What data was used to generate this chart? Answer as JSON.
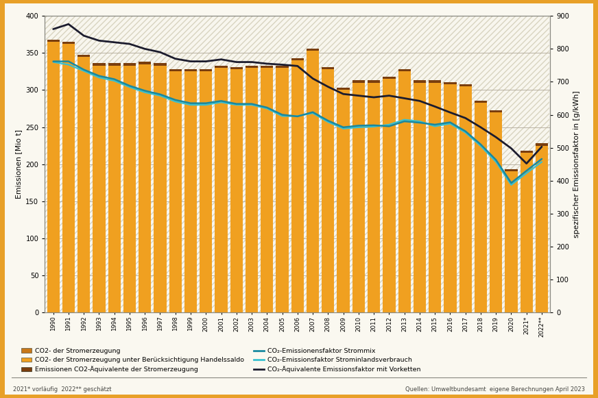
{
  "years": [
    "1990",
    "1991",
    "1992",
    "1993",
    "1994",
    "1995",
    "1996",
    "1997",
    "1998",
    "1999",
    "2000",
    "2001",
    "2002",
    "2003",
    "2004",
    "2005",
    "2006",
    "2007",
    "2008",
    "2009",
    "2010",
    "2011",
    "2012",
    "2013",
    "2014",
    "2015",
    "2016",
    "2017",
    "2018",
    "2019",
    "2020",
    "2021*",
    "2022**"
  ],
  "bar_light": [
    365,
    362,
    345,
    333,
    333,
    333,
    335,
    333,
    325,
    325,
    325,
    330,
    328,
    330,
    330,
    330,
    340,
    353,
    328,
    300,
    310,
    310,
    315,
    325,
    310,
    310,
    308,
    305,
    283,
    270,
    190,
    215,
    225
  ],
  "bar_dark": [
    365,
    362,
    345,
    333,
    333,
    333,
    335,
    333,
    325,
    325,
    325,
    330,
    328,
    330,
    330,
    330,
    340,
    353,
    328,
    300,
    310,
    310,
    315,
    325,
    310,
    310,
    308,
    305,
    283,
    270,
    190,
    215,
    225
  ],
  "bar_brown": [
    368,
    365,
    348,
    336,
    336,
    336,
    338,
    336,
    328,
    328,
    328,
    333,
    331,
    333,
    333,
    333,
    343,
    356,
    331,
    303,
    313,
    313,
    318,
    328,
    313,
    313,
    311,
    308,
    286,
    273,
    193,
    218,
    228
  ],
  "line_navy_gkwh": [
    860,
    875,
    840,
    825,
    820,
    815,
    800,
    790,
    770,
    762,
    762,
    768,
    760,
    760,
    755,
    752,
    748,
    710,
    685,
    663,
    658,
    653,
    658,
    650,
    642,
    625,
    607,
    590,
    562,
    532,
    498,
    452,
    503
  ],
  "line_teal_gkwh": [
    762,
    762,
    737,
    718,
    708,
    688,
    673,
    662,
    645,
    635,
    635,
    642,
    633,
    633,
    622,
    600,
    595,
    608,
    582,
    562,
    567,
    568,
    565,
    580,
    576,
    570,
    577,
    550,
    510,
    463,
    393,
    430,
    466
  ],
  "line_cyan_gkwh": [
    760,
    752,
    733,
    713,
    703,
    684,
    668,
    658,
    640,
    630,
    630,
    638,
    630,
    630,
    619,
    596,
    596,
    605,
    578,
    558,
    562,
    564,
    570,
    585,
    580,
    565,
    573,
    546,
    505,
    457,
    387,
    423,
    457
  ],
  "bar_color_light": "#f0a020",
  "bar_color_dark": "#c87818",
  "bar_color_brown": "#7a3e0e",
  "line_color_navy": "#1c1c2e",
  "line_color_teal": "#1888a0",
  "line_color_cyan": "#38c0d0",
  "plot_bg": "#f8f6ee",
  "hatch_color": "#d8d4c0",
  "inner_bg": "#faf8f0",
  "border_color": "#e8a028",
  "grid_color": "#b0a898",
  "ylabel_left": "Emissionen [Mio t]",
  "ylabel_right": "spezifischer Emissionsfaktor in [g/kWh]",
  "ylim_left": [
    0,
    400
  ],
  "ylim_right": [
    0,
    900
  ],
  "yticks_left": [
    0,
    50,
    100,
    150,
    200,
    250,
    300,
    350,
    400
  ],
  "yticks_right": [
    0,
    100,
    200,
    300,
    400,
    500,
    600,
    700,
    800,
    900
  ],
  "legend_labels": [
    "CO2- der Stromerzeugung",
    "CO2- der Stromerzeugung unter Berücksichtigung Handelssaldo",
    "Emissionen CO2-Äquivalente der Stromerzeugung",
    "CO₂-Emissionensfaktor Strommix",
    "CO₂-Emissionsfaktor Strominlandsverbrauch",
    "CO₂-Äquivalente Emissionsfaktor mit Vorketten"
  ],
  "footnote_left": "2021* vorläufig  2022** geschätzt",
  "footnote_right": "Quellen: Umweltbundesamt  eigene Berechnungen April 2023"
}
